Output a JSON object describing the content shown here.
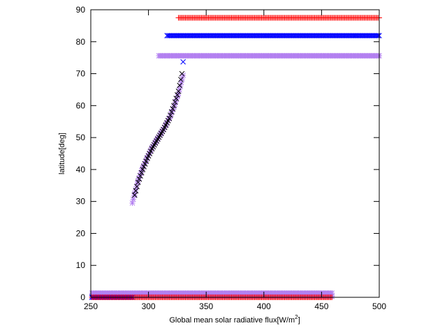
{
  "chart_data": {
    "type": "scatter",
    "title": "",
    "xlabel": "Global mean solar radiative flux[W/m",
    "xlabel_sup": "2",
    "xlabel_close": "]",
    "ylabel": "latitude[deg]",
    "xlim": [
      250,
      500
    ],
    "ylim": [
      0,
      90
    ],
    "xticks": [
      250,
      300,
      350,
      400,
      450,
      500
    ],
    "yticks": [
      0,
      10,
      20,
      30,
      40,
      50,
      60,
      70,
      80,
      90
    ],
    "grid": false,
    "legend": "none",
    "series": [
      {
        "marker": "plus",
        "color": "#ff0000",
        "segments": [
          {
            "x_start": 251,
            "x_end": 459,
            "x_step": 1,
            "y": 0
          },
          {
            "x_start": 326,
            "x_end": 500,
            "x_step": 1,
            "y": 87.5
          }
        ]
      },
      {
        "marker": "x",
        "color": "#0000ff",
        "segments": [
          {
            "x_start": 251,
            "x_end": 286,
            "x_step": 1,
            "y": 0
          },
          {
            "x_start": 316,
            "x_end": 500,
            "x_step": 1,
            "y": 81.9
          }
        ],
        "points": [
          {
            "x": 330,
            "y": 73.7
          }
        ]
      },
      {
        "marker": "x",
        "color": "#000000",
        "curve": [
          {
            "x": 288,
            "y": 32
          },
          {
            "x": 291,
            "y": 36
          },
          {
            "x": 295,
            "y": 40
          },
          {
            "x": 299,
            "y": 43.5
          },
          {
            "x": 303,
            "y": 46.5
          },
          {
            "x": 308,
            "y": 49.5
          },
          {
            "x": 313,
            "y": 52.5
          },
          {
            "x": 318,
            "y": 56
          },
          {
            "x": 322,
            "y": 60
          },
          {
            "x": 326,
            "y": 64.5
          },
          {
            "x": 329,
            "y": 70
          }
        ],
        "curve_step": 1
      },
      {
        "marker": "star",
        "color": "#b27ff0",
        "segments": [
          {
            "x_start": 251,
            "x_end": 459,
            "x_step": 1,
            "y": 0.3
          },
          {
            "x_start": 251,
            "x_end": 459,
            "x_step": 1,
            "y": 1.3
          },
          {
            "x_start": 309,
            "x_end": 500,
            "x_step": 1,
            "y": 75.6
          }
        ],
        "curve": [
          {
            "x": 286,
            "y": 29.5
          },
          {
            "x": 288,
            "y": 32.5
          },
          {
            "x": 291,
            "y": 36.5
          },
          {
            "x": 295,
            "y": 40.5
          },
          {
            "x": 299,
            "y": 43.8
          },
          {
            "x": 303,
            "y": 46.8
          },
          {
            "x": 308,
            "y": 49.8
          },
          {
            "x": 313,
            "y": 52.6
          },
          {
            "x": 318,
            "y": 56
          },
          {
            "x": 322,
            "y": 59.5
          },
          {
            "x": 326,
            "y": 63.8
          },
          {
            "x": 330,
            "y": 69.5
          }
        ],
        "curve_step": 0.8
      }
    ]
  }
}
